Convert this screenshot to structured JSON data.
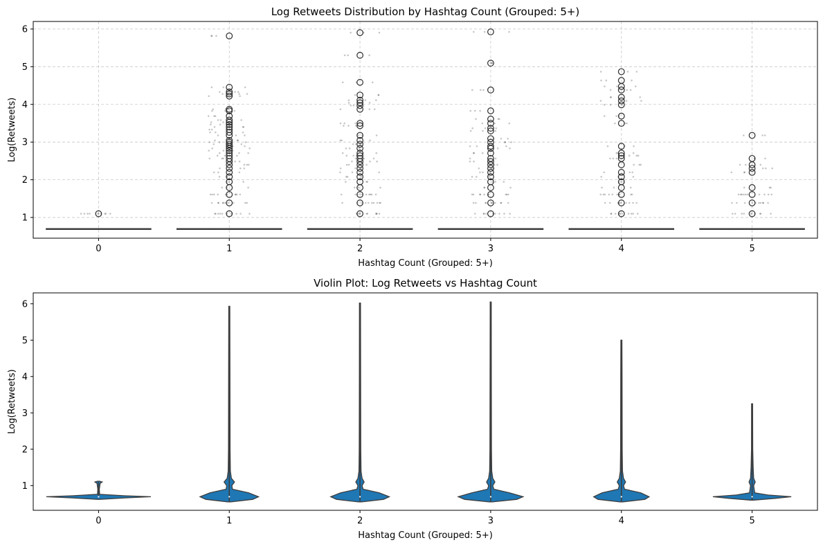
{
  "chart_data": [
    {
      "type": "box",
      "title": "Log Retweets Distribution by Hashtag Count (Grouped: 5+)",
      "xlabel": "Hashtag Count (Grouped: 5+)",
      "ylabel": "Log(Retweets)",
      "categories": [
        "0",
        "1",
        "2",
        "3",
        "4",
        "5"
      ],
      "ylim": [
        0.45,
        6.2
      ],
      "yticks": [
        1,
        2,
        3,
        4,
        5,
        6
      ],
      "grid": true,
      "boxes": [
        {
          "category": "0",
          "q1": 0.693,
          "median": 0.693,
          "q3": 0.693,
          "whisker_low": 0.693,
          "whisker_high": 0.693,
          "outliers": [
            1.099
          ]
        },
        {
          "category": "1",
          "q1": 0.693,
          "median": 0.693,
          "q3": 0.693,
          "whisker_low": 0.693,
          "whisker_high": 0.693,
          "outliers": [
            1.099,
            1.386,
            1.609,
            1.792,
            1.946,
            2.079,
            2.197,
            2.303,
            2.398,
            2.485,
            2.565,
            2.639,
            2.708,
            2.773,
            2.833,
            2.89,
            2.944,
            2.996,
            3.045,
            3.178,
            3.258,
            3.332,
            3.401,
            3.466,
            3.526,
            3.584,
            3.689,
            3.829,
            3.871,
            4.22,
            4.277,
            4.331,
            4.454,
            5.817
          ]
        },
        {
          "category": "2",
          "q1": 0.693,
          "median": 0.693,
          "q3": 0.693,
          "whisker_low": 0.693,
          "whisker_high": 0.693,
          "outliers": [
            1.099,
            1.386,
            1.609,
            1.792,
            1.946,
            2.079,
            2.197,
            2.303,
            2.398,
            2.485,
            2.565,
            2.639,
            2.708,
            2.833,
            2.944,
            3.045,
            3.178,
            3.434,
            3.497,
            3.871,
            3.97,
            4.043,
            4.111,
            4.248,
            4.585,
            5.303,
            5.903
          ]
        },
        {
          "category": "3",
          "q1": 0.693,
          "median": 0.693,
          "q3": 0.693,
          "whisker_low": 0.693,
          "whisker_high": 0.693,
          "outliers": [
            1.099,
            1.386,
            1.609,
            1.792,
            1.946,
            2.079,
            2.197,
            2.303,
            2.398,
            2.485,
            2.565,
            2.708,
            2.833,
            2.89,
            2.996,
            3.091,
            3.296,
            3.367,
            3.497,
            3.611,
            3.829,
            4.382,
            5.094,
            5.924
          ]
        },
        {
          "category": "4",
          "q1": 0.693,
          "median": 0.693,
          "q3": 0.693,
          "whisker_low": 0.693,
          "whisker_high": 0.693,
          "outliers": [
            1.099,
            1.386,
            1.609,
            1.792,
            1.946,
            2.079,
            2.197,
            2.398,
            2.565,
            2.639,
            2.708,
            2.89,
            3.497,
            3.689,
            3.989,
            4.094,
            4.19,
            4.382,
            4.477,
            4.635,
            4.868
          ]
        },
        {
          "category": "5",
          "q1": 0.693,
          "median": 0.693,
          "q3": 0.693,
          "whisker_low": 0.693,
          "whisker_high": 0.693,
          "outliers": [
            1.099,
            1.386,
            1.609,
            1.792,
            2.197,
            2.303,
            2.398,
            2.565,
            3.178
          ]
        }
      ],
      "colors": {
        "box_line": "#3d3d3d",
        "points": "#000000",
        "grid": "#b0b0b0"
      }
    },
    {
      "type": "violin",
      "title": "Violin Plot: Log Retweets vs Hashtag Count",
      "xlabel": "Hashtag Count (Grouped: 5+)",
      "ylabel": "Log(Retweets)",
      "categories": [
        "0",
        "1",
        "2",
        "3",
        "4",
        "5"
      ],
      "ylim": [
        0.32,
        6.3
      ],
      "yticks": [
        1,
        2,
        3,
        4,
        5,
        6
      ],
      "grid": false,
      "violins": [
        {
          "category": "0",
          "y_min": 0.693,
          "y_max": 1.099,
          "median": 0.693,
          "density": [
            [
              0.62,
              0.02
            ],
            [
              0.66,
              0.5
            ],
            [
              0.693,
              1.0
            ],
            [
              0.72,
              0.5
            ],
            [
              0.76,
              0.02
            ],
            [
              0.9,
              0.015
            ],
            [
              1.06,
              0.03
            ],
            [
              1.099,
              0.07
            ],
            [
              1.12,
              0.02
            ]
          ]
        },
        {
          "category": "1",
          "y_min": 0.55,
          "y_max": 5.93,
          "median": 0.693,
          "density": [
            [
              0.55,
              0.03
            ],
            [
              0.62,
              0.45
            ],
            [
              0.693,
              0.56
            ],
            [
              0.8,
              0.37
            ],
            [
              0.9,
              0.06
            ],
            [
              1.0,
              0.05
            ],
            [
              1.099,
              0.1
            ],
            [
              1.2,
              0.04
            ],
            [
              1.4,
              0.02
            ],
            [
              2.0,
              0.015
            ],
            [
              4.0,
              0.012
            ],
            [
              5.93,
              0.01
            ]
          ]
        },
        {
          "category": "2",
          "y_min": 0.55,
          "y_max": 6.02,
          "median": 0.693,
          "density": [
            [
              0.55,
              0.03
            ],
            [
              0.62,
              0.45
            ],
            [
              0.693,
              0.56
            ],
            [
              0.8,
              0.37
            ],
            [
              0.9,
              0.06
            ],
            [
              1.0,
              0.04
            ],
            [
              1.099,
              0.08
            ],
            [
              1.2,
              0.04
            ],
            [
              1.4,
              0.02
            ],
            [
              2.0,
              0.015
            ],
            [
              4.0,
              0.012
            ],
            [
              6.02,
              0.01
            ]
          ]
        },
        {
          "category": "3",
          "y_min": 0.55,
          "y_max": 6.05,
          "median": 0.693,
          "density": [
            [
              0.55,
              0.03
            ],
            [
              0.62,
              0.5
            ],
            [
              0.693,
              0.62
            ],
            [
              0.8,
              0.36
            ],
            [
              0.9,
              0.06
            ],
            [
              1.0,
              0.04
            ],
            [
              1.099,
              0.08
            ],
            [
              1.2,
              0.04
            ],
            [
              1.4,
              0.02
            ],
            [
              2.0,
              0.015
            ],
            [
              4.0,
              0.012
            ],
            [
              6.05,
              0.01
            ]
          ]
        },
        {
          "category": "4",
          "y_min": 0.55,
          "y_max": 5.0,
          "median": 0.693,
          "density": [
            [
              0.55,
              0.03
            ],
            [
              0.62,
              0.45
            ],
            [
              0.693,
              0.53
            ],
            [
              0.8,
              0.37
            ],
            [
              0.9,
              0.06
            ],
            [
              1.0,
              0.04
            ],
            [
              1.099,
              0.08
            ],
            [
              1.2,
              0.04
            ],
            [
              1.4,
              0.02
            ],
            [
              2.0,
              0.015
            ],
            [
              4.0,
              0.012
            ],
            [
              5.0,
              0.01
            ]
          ]
        },
        {
          "category": "5",
          "y_min": 0.6,
          "y_max": 3.25,
          "median": 0.693,
          "density": [
            [
              0.6,
              0.03
            ],
            [
              0.65,
              0.45
            ],
            [
              0.693,
              0.75
            ],
            [
              0.74,
              0.3
            ],
            [
              0.8,
              0.05
            ],
            [
              1.0,
              0.03
            ],
            [
              1.099,
              0.06
            ],
            [
              1.2,
              0.03
            ],
            [
              1.5,
              0.02
            ],
            [
              2.0,
              0.012
            ],
            [
              3.25,
              0.01
            ]
          ]
        }
      ],
      "colors": {
        "fill": "#1f77b4",
        "edge": "#3d3d3d"
      }
    }
  ]
}
